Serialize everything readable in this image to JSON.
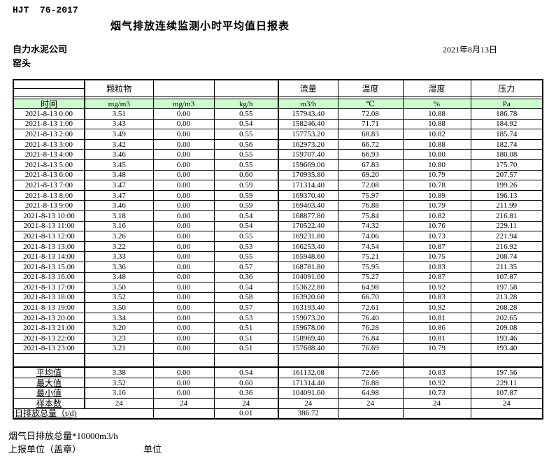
{
  "page": {
    "doc_code": "HJT  76-2017",
    "title": "烟气排放连续监测小时平均值日报表",
    "company": "自力水泥公司",
    "location": "窑头",
    "date": "2021年8月13日"
  },
  "colors": {
    "header_green": "#ccffcc",
    "border": "#000000"
  },
  "table": {
    "group_headers": [
      "",
      "颗粒物",
      "",
      "",
      "流量",
      "温度",
      "湿度",
      "压力"
    ],
    "time_header": "时间",
    "unit_headers": [
      "mg/m3",
      "mg/m3",
      "kg/h",
      "m3/h",
      "℃",
      "%",
      "Pa"
    ],
    "rows": [
      [
        "2021-8-13 0:00",
        "3.51",
        "0.00",
        "0.55",
        "157943.40",
        "72.08",
        "10.88",
        "186.78"
      ],
      [
        "2021-8-13 1:00",
        "3.43",
        "0.00",
        "0.54",
        "158246.40",
        "71.71",
        "10.88",
        "184.92"
      ],
      [
        "2021-8-13 2:00",
        "3.49",
        "0.00",
        "0.55",
        "157753.20",
        "68.83",
        "10.82",
        "185.74"
      ],
      [
        "2021-8-13 3:00",
        "3.42",
        "0.00",
        "0.56",
        "162973.20",
        "66.72",
        "10.88",
        "182.74"
      ],
      [
        "2021-8-13 4:00",
        "3.46",
        "0.00",
        "0.55",
        "159707.40",
        "66.93",
        "10.80",
        "180.08"
      ],
      [
        "2021-8-13 5:00",
        "3.45",
        "0.00",
        "0.55",
        "159669.00",
        "67.83",
        "10.80",
        "175.70"
      ],
      [
        "2021-8-13 6:00",
        "3.48",
        "0.00",
        "0.60",
        "170935.80",
        "69.20",
        "10.79",
        "207.57"
      ],
      [
        "2021-8-13 7:00",
        "3.47",
        "0.00",
        "0.59",
        "171314.40",
        "72.08",
        "10.78",
        "199.26"
      ],
      [
        "2021-8-13 8:00",
        "3.47",
        "0.00",
        "0.59",
        "169370.40",
        "75.97",
        "10.89",
        "196.13"
      ],
      [
        "2021-8-13 9:00",
        "3.46",
        "0.00",
        "0.59",
        "169403.40",
        "76.88",
        "10.79",
        "211.99"
      ],
      [
        "2021-8-13 10:00",
        "3.18",
        "0.00",
        "0.54",
        "168877.80",
        "75.84",
        "10.82",
        "216.81"
      ],
      [
        "2021-8-13 11:00",
        "3.16",
        "0.00",
        "0.54",
        "170522.40",
        "74.32",
        "10.76",
        "229.11"
      ],
      [
        "2021-8-13 12:00",
        "3.26",
        "0.00",
        "0.55",
        "169231.80",
        "74.06",
        "10.73",
        "221.94"
      ],
      [
        "2021-8-13 13:00",
        "3.22",
        "0.00",
        "0.53",
        "166253.40",
        "74.54",
        "10.87",
        "216.92"
      ],
      [
        "2021-8-13 14:00",
        "3.33",
        "0.00",
        "0.55",
        "165948.60",
        "75.21",
        "10.75",
        "208.74"
      ],
      [
        "2021-8-13 15:00",
        "3.36",
        "0.00",
        "0.57",
        "168781.80",
        "75.95",
        "10.83",
        "211.35"
      ],
      [
        "2021-8-13 16:00",
        "3.48",
        "0.00",
        "0.36",
        "104091.60",
        "75.27",
        "10.87",
        "107.87"
      ],
      [
        "2021-8-13 17:00",
        "3.50",
        "0.00",
        "0.54",
        "153622.80",
        "64.98",
        "10.92",
        "197.58"
      ],
      [
        "2021-8-13 18:00",
        "3.52",
        "0.00",
        "0.58",
        "163920.60",
        "66.70",
        "10.83",
        "213.28"
      ],
      [
        "2021-8-13 19:00",
        "3.50",
        "0.00",
        "0.57",
        "163193.40",
        "72.61",
        "10.92",
        "208.28"
      ],
      [
        "2021-8-13 20:00",
        "3.34",
        "0.00",
        "0.53",
        "159073.20",
        "76.40",
        "10.81",
        "202.65"
      ],
      [
        "2021-8-13 21:00",
        "3.20",
        "0.00",
        "0.51",
        "159678.00",
        "76.28",
        "10.86",
        "209.08"
      ],
      [
        "2021-8-13 22:00",
        "3.23",
        "0.00",
        "0.51",
        "158969.40",
        "76.84",
        "10.81",
        "193.46"
      ],
      [
        "2021-8-13 23:00",
        "3.21",
        "0.00",
        "0.51",
        "157688.40",
        "76.69",
        "10.79",
        "193.40"
      ]
    ],
    "summary_rows": [
      {
        "label": "平均值",
        "values": [
          "3.38",
          "0.00",
          "0.54",
          "161132.08",
          "72.66",
          "10.83",
          "197.56"
        ]
      },
      {
        "label": "最大值",
        "values": [
          "3.52",
          "0.00",
          "0.60",
          "171314.40",
          "76.88",
          "10.92",
          "229.11"
        ]
      },
      {
        "label": "最小值",
        "values": [
          "3.16",
          "0.00",
          "0.36",
          "104091.60",
          "64.98",
          "10.73",
          "107.87"
        ]
      },
      {
        "label": "样本数",
        "values": [
          "24",
          "24",
          "24",
          "24",
          "24",
          "24",
          "24"
        ]
      }
    ],
    "total_row": {
      "label": "日排放总量（t/d)",
      "values": [
        "",
        "0.01",
        "386.72",
        "",
        "",
        ""
      ]
    }
  },
  "footer": {
    "note": "烟气日排放总量*10000m3/h",
    "report_unit_label": "上报单位（盖章）",
    "unit_label": "单位"
  }
}
